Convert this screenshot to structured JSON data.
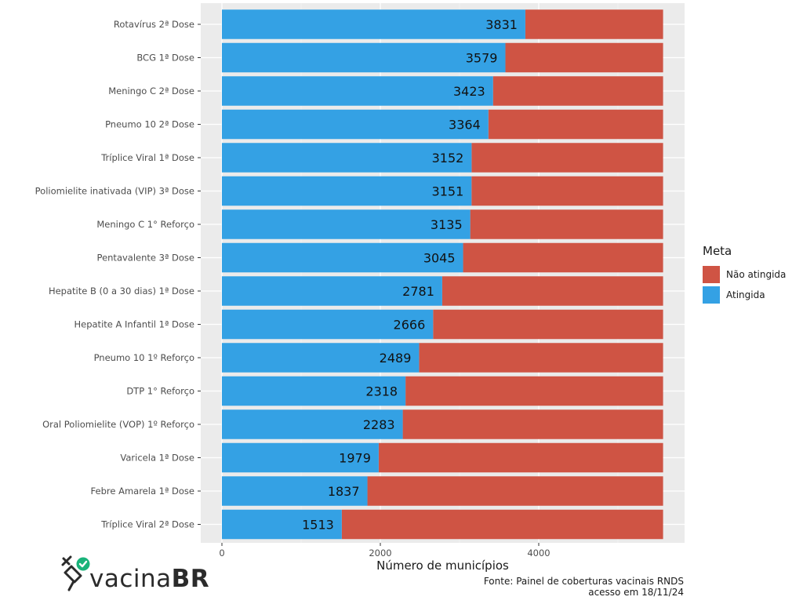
{
  "chart_data": {
    "type": "bar",
    "orientation": "horizontal",
    "stacked": true,
    "categories": [
      "Rotavírus 2ª Dose",
      "BCG 1ª Dose",
      "Meningo C 2ª Dose",
      "Pneumo 10 2ª Dose",
      "Tríplice Viral 1ª Dose",
      "Poliomielite inativada (VIP) 3ª Dose",
      "Meningo C 1° Reforço",
      "Pentavalente 3ª Dose",
      "Hepatite B (0 a 30 dias) 1ª Dose",
      "Hepatite A Infantil 1ª Dose",
      "Pneumo 10 1º Reforço",
      "DTP 1° Reforço",
      "Oral Poliomielite (VOP) 1º Reforço",
      "Varicela 1ª Dose",
      "Febre Amarela 1ª Dose",
      "Tríplice Viral 2ª Dose"
    ],
    "series": [
      {
        "name": "Atingida",
        "color": "#34a1e4",
        "values": [
          3831,
          3579,
          3423,
          3364,
          3152,
          3151,
          3135,
          3045,
          2781,
          2666,
          2489,
          2318,
          2283,
          1979,
          1837,
          1513
        ]
      },
      {
        "name": "Não atingida",
        "color": "#cf5444",
        "values": [
          1739,
          1991,
          2147,
          2206,
          2418,
          2419,
          2435,
          2525,
          2789,
          2904,
          3081,
          3252,
          3287,
          3591,
          3733,
          4057
        ]
      }
    ],
    "data_labels": [
      "3831",
      "3579",
      "3423",
      "3364",
      "3152",
      "3151",
      "3135",
      "3045",
      "2781",
      "2666",
      "2489",
      "2318",
      "2283",
      "1979",
      "1837",
      "1513"
    ],
    "xlabel": "Número de municípios",
    "ylabel": "",
    "xlim": [
      0,
      5850
    ],
    "xticks": [
      0,
      2000,
      4000
    ],
    "xtick_labels": [
      "0",
      "2000",
      "4000"
    ],
    "grid": true,
    "legend": {
      "title": "Meta",
      "position": "right"
    },
    "background": "#ebebeb"
  },
  "legend": {
    "title": "Meta",
    "items": [
      {
        "label": "Não atingida",
        "color": "#cf5444"
      },
      {
        "label": "Atingida",
        "color": "#34a1e4"
      }
    ]
  },
  "source": {
    "line1": "Fonte: Painel de coberturas vacinais RNDS",
    "line2": "acesso em 18/11/24"
  },
  "logo": {
    "text_light": "vacina",
    "text_bold": "BR",
    "icon": "syringe-check-icon",
    "check_color": "#19b37a"
  }
}
